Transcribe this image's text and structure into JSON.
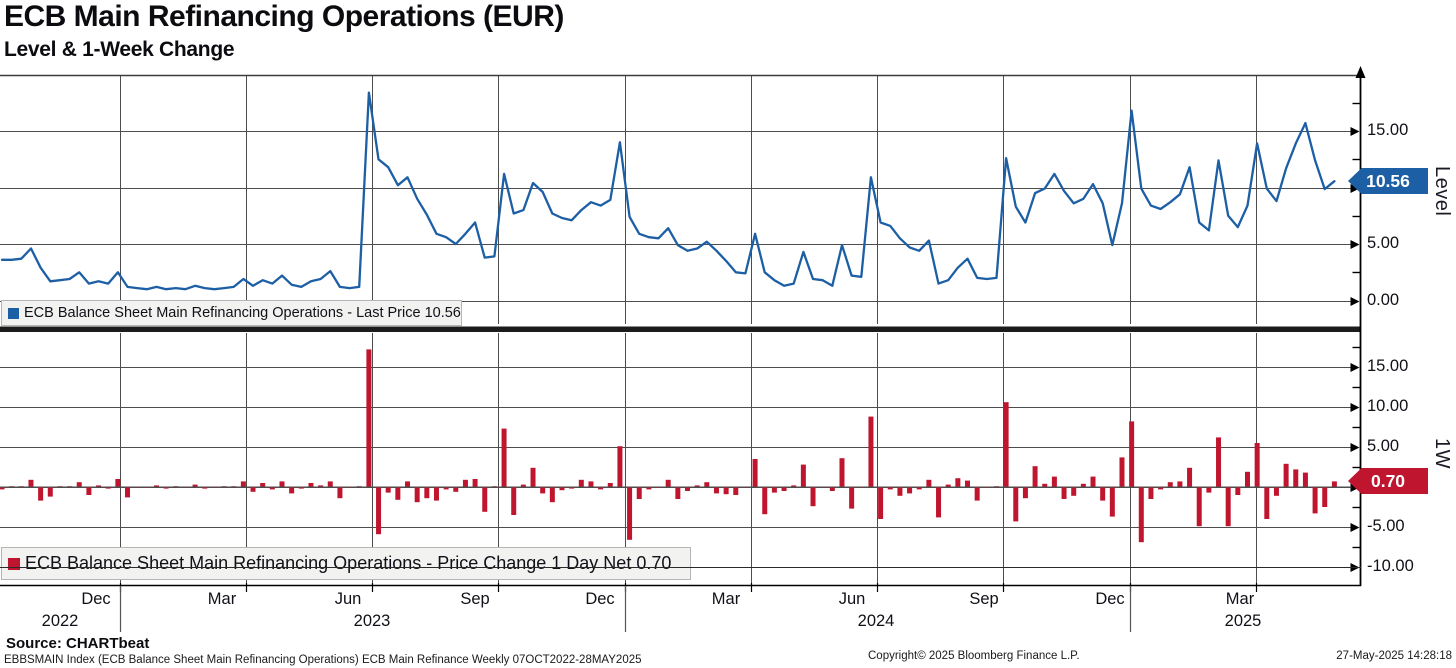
{
  "header": {
    "title": "ECB Main Refinancing Operations (EUR)",
    "subtitle": "Level & 1-Week Change"
  },
  "colors": {
    "line_blue": "#1d5fa5",
    "bar_red": "#c0152f",
    "grid": "#4d4d4d",
    "axis": "#000000",
    "legend_bg": "#f2f2f0"
  },
  "top_panel": {
    "legend_label": "ECB Balance Sheet Main Refinancing Operations - Last Price 10.56",
    "axis_label": "Level",
    "badge_value": "10.56",
    "yticks": [
      {
        "label": "15.00",
        "value": 15
      },
      {
        "label": "10.00",
        "value": 10
      },
      {
        "label": "5.00",
        "value": 5
      },
      {
        "label": "0.00",
        "value": 0
      }
    ]
  },
  "bottom_panel": {
    "legend_label": "ECB Balance Sheet Main Refinancing Operations - Price Change 1 Day Net 0.70",
    "axis_label": "1W",
    "badge_value": "0.70",
    "yticks": [
      {
        "label": "15.00",
        "value": 15
      },
      {
        "label": "10.00",
        "value": 10
      },
      {
        "label": "5.00",
        "value": 5
      },
      {
        "label": "0.00",
        "value": 0
      },
      {
        "label": "-5.00",
        "value": -5
      },
      {
        "label": "-10.00",
        "value": -10
      }
    ]
  },
  "x_axis": {
    "months": [
      {
        "label": "Dec",
        "x": 96
      },
      {
        "label": "Mar",
        "x": 222
      },
      {
        "label": "Jun",
        "x": 348
      },
      {
        "label": "Sep",
        "x": 475
      },
      {
        "label": "Dec",
        "x": 600
      },
      {
        "label": "Mar",
        "x": 726
      },
      {
        "label": "Jun",
        "x": 852
      },
      {
        "label": "Sep",
        "x": 984
      },
      {
        "label": "Dec",
        "x": 1110
      },
      {
        "label": "Mar",
        "x": 1240
      }
    ],
    "years": [
      {
        "label": "2022",
        "x": 60
      },
      {
        "label": "2023",
        "x": 372
      },
      {
        "label": "2024",
        "x": 876
      },
      {
        "label": "2025",
        "x": 1243
      }
    ]
  },
  "footer": {
    "source": "Source: CHARTbeat",
    "description": "EBBSMAIN Index (ECB Balance Sheet Main Refinancing Operations) ECB Main Refinance  Weekly 07OCT2022-28MAY2025",
    "copyright": "Copyright© 2025 Bloomberg Finance L.P.",
    "timestamp": "27-May-2025 14:28:18"
  },
  "chart_data": [
    {
      "type": "line",
      "name": "ECB Balance Sheet Main Refinancing Operations - Last Price",
      "last_price": 10.56,
      "frequency": "weekly",
      "period": "07OCT2022-28MAY2025",
      "ylabel": "Level",
      "ylim": [
        0,
        20
      ],
      "yticks": [
        0,
        5,
        10,
        15
      ],
      "grid": true,
      "color": "#1d5fa5",
      "values": [
        3.6,
        3.6,
        3.7,
        4.6,
        2.9,
        1.7,
        1.8,
        1.9,
        2.5,
        1.5,
        1.7,
        1.5,
        2.5,
        1.2,
        1.1,
        1.0,
        1.2,
        1.0,
        1.1,
        1.0,
        1.3,
        1.1,
        1.0,
        1.1,
        1.2,
        1.9,
        1.3,
        1.8,
        1.5,
        2.2,
        1.4,
        1.2,
        1.7,
        1.9,
        2.6,
        1.2,
        1.1,
        1.2,
        18.4,
        12.5,
        11.8,
        10.2,
        10.9,
        9.0,
        7.6,
        5.9,
        5.6,
        5.0,
        5.9,
        6.9,
        3.8,
        3.9,
        11.2,
        7.7,
        8.0,
        10.4,
        9.6,
        7.7,
        7.3,
        7.1,
        8.0,
        8.7,
        8.4,
        8.9,
        14.0,
        7.4,
        5.9,
        5.6,
        5.5,
        6.4,
        4.9,
        4.4,
        4.6,
        5.2,
        4.4,
        3.5,
        2.5,
        2.4,
        5.9,
        2.5,
        1.8,
        1.3,
        1.5,
        4.3,
        1.9,
        1.8,
        1.3,
        4.9,
        2.2,
        2.1,
        10.9,
        6.9,
        6.6,
        5.5,
        4.7,
        4.4,
        5.3,
        1.5,
        1.8,
        2.9,
        3.7,
        2.0,
        1.9,
        2.0,
        12.6,
        8.3,
        6.9,
        9.5,
        9.9,
        11.2,
        9.7,
        8.6,
        9.0,
        10.3,
        8.6,
        4.9,
        8.6,
        16.8,
        9.9,
        8.4,
        8.1,
        8.7,
        9.4,
        11.8,
        6.9,
        6.2,
        12.4,
        7.5,
        6.5,
        8.4,
        13.9,
        9.9,
        8.8,
        11.7,
        13.9,
        15.7,
        12.4,
        9.86,
        10.56
      ]
    },
    {
      "type": "bar",
      "name": "ECB Balance Sheet Main Refinancing Operations - Price Change 1 Day Net",
      "last_value": 0.7,
      "frequency": "weekly",
      "period": "07OCT2022-28MAY2025",
      "ylabel": "1W",
      "ylim": [
        -12.5,
        19
      ],
      "yticks": [
        -10,
        -5,
        0,
        5,
        10,
        15
      ],
      "grid": true,
      "color": "#c0152f",
      "values": [
        -0.3,
        0.0,
        0.1,
        0.9,
        -1.7,
        -1.2,
        0.1,
        0.1,
        0.6,
        -1.0,
        0.2,
        -0.2,
        1.0,
        -1.3,
        -0.1,
        -0.1,
        0.2,
        -0.2,
        0.1,
        -0.1,
        0.3,
        -0.2,
        -0.1,
        0.1,
        0.1,
        0.7,
        -0.6,
        0.5,
        -0.3,
        0.7,
        -0.8,
        -0.2,
        0.5,
        0.2,
        0.7,
        -1.4,
        -0.1,
        0.1,
        17.2,
        -5.9,
        -0.7,
        -1.6,
        0.7,
        -1.9,
        -1.4,
        -1.7,
        -0.3,
        -0.6,
        0.9,
        1.0,
        -3.1,
        0.1,
        7.3,
        -3.5,
        0.3,
        2.4,
        -0.8,
        -1.9,
        -0.4,
        -0.2,
        0.9,
        0.7,
        -0.3,
        0.5,
        5.1,
        -6.6,
        -1.5,
        -0.3,
        -0.1,
        0.9,
        -1.5,
        -0.5,
        0.2,
        0.6,
        -0.8,
        -0.9,
        -1.0,
        -0.1,
        3.5,
        -3.4,
        -0.7,
        -0.5,
        0.2,
        2.8,
        -2.4,
        -0.1,
        -0.5,
        3.6,
        -2.7,
        -0.1,
        8.8,
        -4.0,
        -0.3,
        -1.1,
        -0.8,
        -0.3,
        0.9,
        -3.8,
        0.3,
        1.1,
        0.8,
        -1.7,
        -0.1,
        0.1,
        10.6,
        -4.3,
        -1.4,
        2.6,
        0.4,
        1.3,
        -1.5,
        -1.1,
        0.4,
        1.3,
        -1.7,
        -3.7,
        3.7,
        8.2,
        -6.9,
        -1.5,
        -0.3,
        0.6,
        0.7,
        2.4,
        -4.9,
        -0.7,
        6.2,
        -4.9,
        -1.0,
        1.9,
        5.5,
        -4.0,
        -1.1,
        2.9,
        2.2,
        1.8,
        -3.3,
        -2.5,
        0.7
      ]
    }
  ]
}
